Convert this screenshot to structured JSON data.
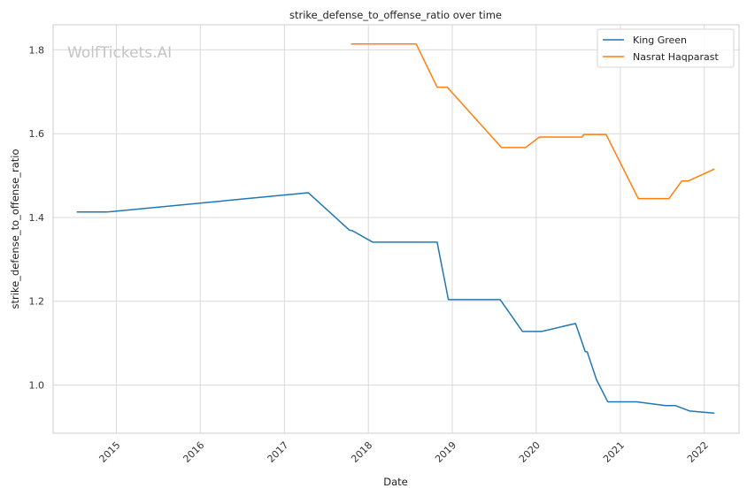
{
  "chart_data": {
    "type": "line",
    "title": "strike_defense_to_offense_ratio over time",
    "xlabel": "Date",
    "ylabel": "strike_defense_to_offense_ratio",
    "watermark": "WolfTickets.AI",
    "x_ticks": [
      "2015",
      "2016",
      "2017",
      "2018",
      "2019",
      "2020",
      "2021",
      "2022"
    ],
    "y_ticks": [
      "1.0",
      "1.2",
      "1.4",
      "1.6",
      "1.8"
    ],
    "xlim": [
      "2014-04-01",
      "2022-06-01"
    ],
    "ylim": [
      0.885,
      1.86
    ],
    "grid": true,
    "legend_position": "top-right",
    "series": [
      {
        "name": "King Green",
        "color": "#1f77b4",
        "points": [
          [
            "2014-07-15",
            1.413
          ],
          [
            "2014-11-20",
            1.413
          ],
          [
            "2017-04-15",
            1.459
          ],
          [
            "2017-10-10",
            1.37
          ],
          [
            "2017-10-25",
            1.368
          ],
          [
            "2018-01-20",
            1.341
          ],
          [
            "2018-10-27",
            1.341
          ],
          [
            "2018-12-15",
            1.204
          ],
          [
            "2019-07-28",
            1.204
          ],
          [
            "2019-11-02",
            1.128
          ],
          [
            "2020-01-25",
            1.128
          ],
          [
            "2020-06-20",
            1.147
          ],
          [
            "2020-08-01",
            1.08
          ],
          [
            "2020-08-10",
            1.079
          ],
          [
            "2020-09-19",
            1.013
          ],
          [
            "2020-11-07",
            0.96
          ],
          [
            "2021-03-13",
            0.96
          ],
          [
            "2021-07-17",
            0.951
          ],
          [
            "2021-08-28",
            0.951
          ],
          [
            "2021-10-30",
            0.938
          ],
          [
            "2022-02-12",
            0.933
          ]
        ]
      },
      {
        "name": "Nasrat Haqparast",
        "color": "#ff7f0e",
        "points": [
          [
            "2017-10-20",
            1.814
          ],
          [
            "2018-07-28",
            1.814
          ],
          [
            "2018-10-27",
            1.711
          ],
          [
            "2018-12-10",
            1.711
          ],
          [
            "2019-08-03",
            1.567
          ],
          [
            "2019-11-16",
            1.567
          ],
          [
            "2020-01-15",
            1.592
          ],
          [
            "2020-07-18",
            1.592
          ],
          [
            "2020-07-26",
            1.598
          ],
          [
            "2020-10-31",
            1.598
          ],
          [
            "2021-03-20",
            1.445
          ],
          [
            "2021-07-31",
            1.445
          ],
          [
            "2021-09-25",
            1.487
          ],
          [
            "2021-10-23",
            1.487
          ],
          [
            "2022-02-12",
            1.515
          ]
        ]
      }
    ]
  }
}
